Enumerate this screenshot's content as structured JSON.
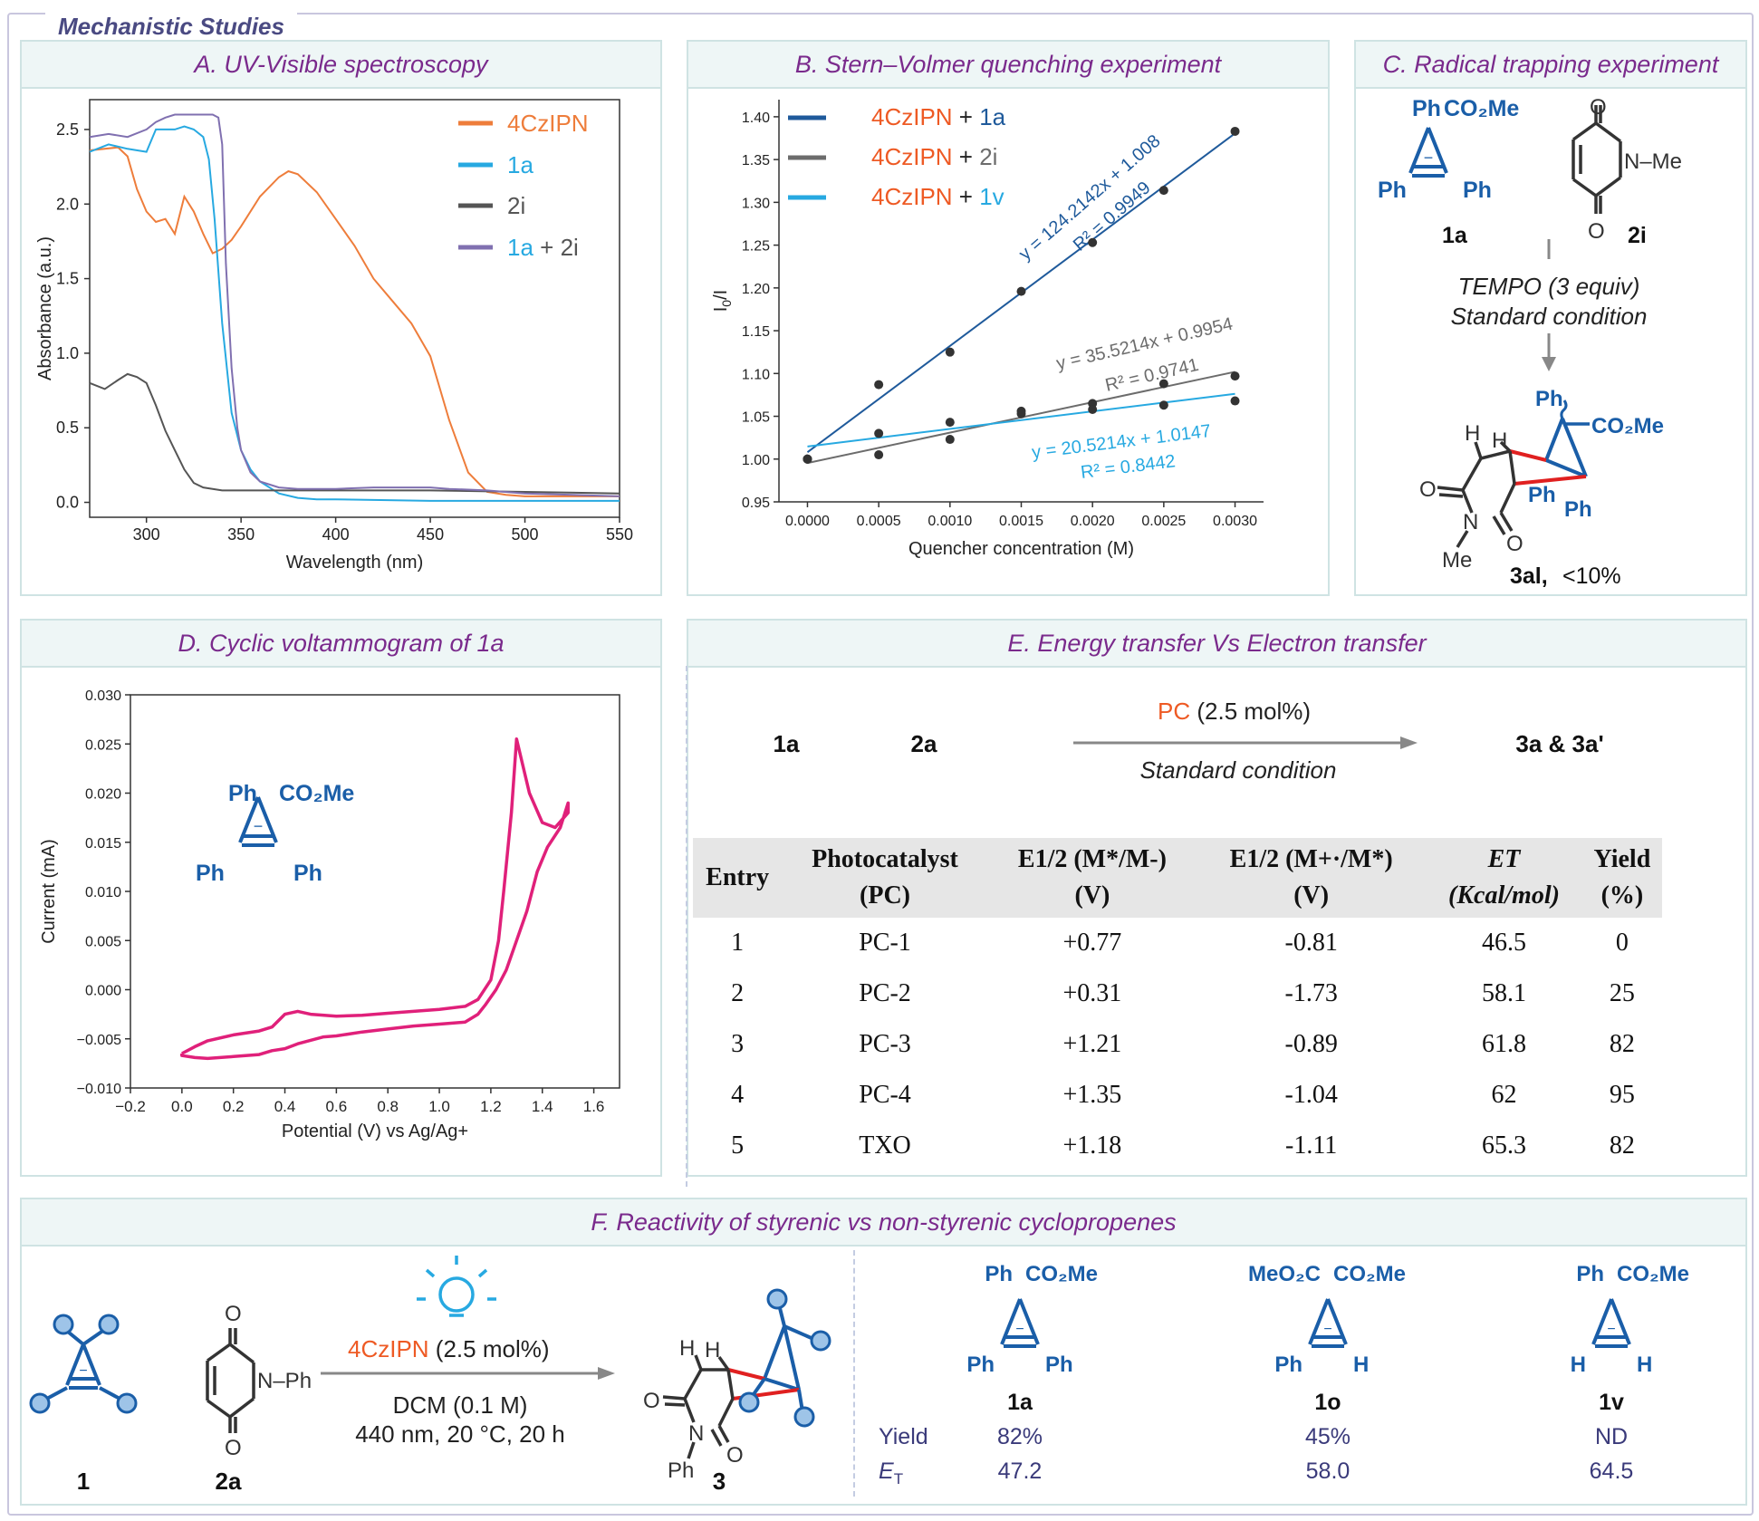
{
  "page_title": "Mechanistic Studies",
  "panels": {
    "a": {
      "title": "A. UV-Visible spectroscopy"
    },
    "b": {
      "title": "B. Stern–Volmer quenching experiment"
    },
    "c": {
      "title": "C. Radical trapping experiment"
    },
    "d": {
      "title": "D. Cyclic voltammogram of 1a"
    },
    "e": {
      "title": "E. Energy transfer Vs Electron transfer"
    },
    "f": {
      "title": "F. Reactivity of styrenic vs non-styrenic cyclopropenes"
    }
  },
  "chart_data": [
    {
      "type": "line",
      "xlabel": "Wavelength (nm)",
      "ylabel": "Absorbance (a.u.)",
      "xlim": [
        270,
        550
      ],
      "ylim": [
        -0.1,
        2.7
      ],
      "xticks": [
        300,
        350,
        400,
        450,
        500,
        550
      ],
      "yticks": [
        0.0,
        0.5,
        1.0,
        1.5,
        2.0,
        2.5
      ],
      "legend": {
        "placement": "top-right",
        "entries": [
          "4CzIPN",
          "1a",
          "2i",
          "1a + 2i"
        ]
      },
      "series": [
        {
          "name": "4CzIPN",
          "color": "#ee7d3b",
          "x": [
            270,
            285,
            290,
            295,
            300,
            305,
            310,
            315,
            320,
            325,
            330,
            335,
            340,
            345,
            350,
            360,
            370,
            375,
            380,
            390,
            400,
            410,
            420,
            430,
            440,
            450,
            460,
            470,
            480,
            490,
            500,
            510,
            530,
            550
          ],
          "y": [
            2.36,
            2.38,
            2.32,
            2.1,
            1.95,
            1.88,
            1.9,
            1.8,
            2.05,
            1.95,
            1.8,
            1.67,
            1.7,
            1.76,
            1.85,
            2.05,
            2.18,
            2.22,
            2.2,
            2.08,
            1.9,
            1.72,
            1.5,
            1.35,
            1.2,
            0.98,
            0.55,
            0.2,
            0.07,
            0.05,
            0.04,
            0.04,
            0.04,
            0.04
          ]
        },
        {
          "name": "1a",
          "color": "#27a9e1",
          "x": [
            270,
            280,
            290,
            300,
            305,
            310,
            315,
            320,
            325,
            330,
            333,
            336,
            340,
            345,
            350,
            355,
            360,
            370,
            380,
            390,
            400,
            450,
            500,
            550
          ],
          "y": [
            2.35,
            2.4,
            2.37,
            2.35,
            2.5,
            2.5,
            2.5,
            2.52,
            2.5,
            2.45,
            2.3,
            1.9,
            1.2,
            0.6,
            0.35,
            0.22,
            0.14,
            0.06,
            0.03,
            0.02,
            0.02,
            0.01,
            0.01,
            0.01
          ]
        },
        {
          "name": "2i",
          "color": "#555555",
          "x": [
            270,
            278,
            285,
            290,
            295,
            300,
            305,
            310,
            315,
            320,
            325,
            330,
            335,
            340,
            345,
            350,
            360,
            380,
            400,
            450,
            500,
            550
          ],
          "y": [
            0.8,
            0.76,
            0.82,
            0.86,
            0.84,
            0.8,
            0.65,
            0.48,
            0.35,
            0.22,
            0.13,
            0.1,
            0.09,
            0.08,
            0.08,
            0.08,
            0.08,
            0.08,
            0.08,
            0.08,
            0.07,
            0.06
          ]
        },
        {
          "name": "1a + 2i",
          "color": "#8070b0",
          "x": [
            270,
            280,
            290,
            300,
            305,
            310,
            315,
            320,
            325,
            330,
            335,
            338,
            340,
            342,
            345,
            348,
            350,
            355,
            360,
            370,
            380,
            400,
            420,
            440,
            450,
            460,
            480,
            500,
            550
          ],
          "y": [
            2.45,
            2.47,
            2.45,
            2.5,
            2.55,
            2.58,
            2.6,
            2.6,
            2.6,
            2.6,
            2.6,
            2.58,
            2.4,
            1.6,
            0.9,
            0.5,
            0.35,
            0.2,
            0.14,
            0.1,
            0.09,
            0.09,
            0.1,
            0.1,
            0.1,
            0.09,
            0.08,
            0.06,
            0.04
          ]
        }
      ]
    },
    {
      "type": "scatter",
      "xlabel": "Quencher concentration (M)",
      "ylabel": "I0/I",
      "xlim": [
        -0.0002,
        0.0032
      ],
      "ylim": [
        0.95,
        1.42
      ],
      "xticks": [
        "0.0000",
        "0.0005",
        "0.0010",
        "0.0015",
        "0.0020",
        "0.0025",
        "0.0030"
      ],
      "yticks": [
        "0.95",
        "1.00",
        "1.05",
        "1.10",
        "1.15",
        "1.20",
        "1.25",
        "1.30",
        "1.35",
        "1.40"
      ],
      "legend": {
        "placement": "top-left",
        "entries": [
          {
            "left": "4CzIPN",
            "right": "1a",
            "color": "#1f5a9b",
            "right_color": "#1f5a9b"
          },
          {
            "left": "4CzIPN",
            "right": "2i",
            "color": "#6c6c6c",
            "right_color": "#6c6c6c"
          },
          {
            "left": "4CzIPN",
            "right": "1v",
            "color": "#27a9e1",
            "right_color": "#27a9e1"
          }
        ]
      },
      "series": [
        {
          "name": "1a",
          "x": [
            0,
            0.0005,
            0.001,
            0.0015,
            0.002,
            0.0025,
            0.003
          ],
          "y": [
            1.0,
            1.087,
            1.125,
            1.196,
            1.253,
            1.314,
            1.383
          ],
          "fit": {
            "slope": 124.2142,
            "intercept": 1.008
          },
          "equation": "y = 124.2142x + 1.008",
          "r2": "R² = 0.9949"
        },
        {
          "name": "2i",
          "x": [
            0,
            0.0005,
            0.001,
            0.0015,
            0.002,
            0.0025,
            0.003
          ],
          "y": [
            1.0,
            1.005,
            1.023,
            1.053,
            1.065,
            1.088,
            1.097
          ],
          "fit": {
            "slope": 35.5214,
            "intercept": 0.9954
          },
          "equation": "y = 35.5214x + 0.9954",
          "r2": "R² = 0.9741"
        },
        {
          "name": "1v",
          "x": [
            0,
            0.0005,
            0.001,
            0.0015,
            0.002,
            0.0025,
            0.003
          ],
          "y": [
            1.0,
            1.03,
            1.043,
            1.056,
            1.058,
            1.063,
            1.068
          ],
          "fit": {
            "slope": 20.5214,
            "intercept": 1.0147
          },
          "equation": "y = 20.5214x + 1.0147",
          "r2": "R² = 0.8442"
        }
      ]
    },
    {
      "type": "line",
      "xlabel": "Potential (V) vs Ag/Ag+",
      "ylabel": "Current (mA)",
      "xlim": [
        -0.2,
        1.7
      ],
      "ylim": [
        -0.01,
        0.03
      ],
      "xticks": [
        "−0.2",
        "0.0",
        "0.2",
        "0.4",
        "0.6",
        "0.8",
        "1.0",
        "1.2",
        "1.4",
        "1.6"
      ],
      "yticks": [
        "−0.010",
        "−0.005",
        "0.000",
        "0.005",
        "0.010",
        "0.015",
        "0.020",
        "0.025",
        "0.030"
      ],
      "series": [
        {
          "name": "",
          "color": "#e0207a",
          "x": [
            0.0,
            0.05,
            0.1,
            0.2,
            0.3,
            0.35,
            0.4,
            0.45,
            0.5,
            0.6,
            0.7,
            0.8,
            0.9,
            1.0,
            1.1,
            1.15,
            1.2,
            1.23,
            1.25,
            1.28,
            1.3,
            1.35,
            1.4,
            1.45,
            1.5,
            1.5,
            1.47,
            1.42,
            1.38,
            1.34,
            1.3,
            1.26,
            1.22,
            1.18,
            1.15,
            1.1,
            1.0,
            0.9,
            0.8,
            0.7,
            0.6,
            0.55,
            0.45,
            0.4,
            0.35,
            0.3,
            0.2,
            0.1,
            0.05,
            0.0,
            0.0
          ],
          "y": [
            -0.0065,
            -0.0058,
            -0.0052,
            -0.0046,
            -0.0042,
            -0.0038,
            -0.0025,
            -0.0022,
            -0.0025,
            -0.0027,
            -0.0026,
            -0.0024,
            -0.0022,
            -0.002,
            -0.0017,
            -0.001,
            0.001,
            0.005,
            0.01,
            0.018,
            0.0255,
            0.02,
            0.017,
            0.0165,
            0.018,
            0.019,
            0.0165,
            0.0145,
            0.012,
            0.008,
            0.005,
            0.002,
            0.0,
            -0.0015,
            -0.0025,
            -0.0033,
            -0.0035,
            -0.0037,
            -0.004,
            -0.0043,
            -0.0047,
            -0.0048,
            -0.0055,
            -0.006,
            -0.0062,
            -0.0066,
            -0.0068,
            -0.007,
            -0.0069,
            -0.0067,
            -0.0065
          ]
        }
      ]
    }
  ],
  "panel_a_legend": {
    "series1": "4CzIPN",
    "series2": "1a",
    "series3": "2i",
    "series4_left": "1a",
    "series4_plus": " + ",
    "series4_right": "2i"
  },
  "panel_b_equations": {
    "eq1": "y = 124.2142x + 1.008",
    "r1": "R² = 0.9949",
    "eq2": "y = 35.5214x + 0.9954",
    "r2": "R² = 0.9741",
    "eq3": "y = 20.5214x + 1.0147",
    "r3": "R² = 0.8442"
  },
  "panel_c": {
    "reactant_1": "1a",
    "reactant_2": "2i",
    "substituents": {
      "ph": "Ph",
      "co2me": "CO₂Me",
      "nme": "N–Me",
      "me": "Me",
      "o": "O",
      "h": "H"
    },
    "condition_1": "TEMPO (3 equiv)",
    "condition_2": "Standard condition",
    "product_label": "3al,",
    "product_yield": "<10%"
  },
  "panel_d": {
    "molecule_ph": "Ph",
    "molecule_co2me": "CO₂Me"
  },
  "panel_e": {
    "reactant_1": "1a",
    "reactant_2": "2a",
    "arrow_top_pc": "PC",
    "arrow_top_rest": " (2.5 mol%)",
    "arrow_bottom": "Standard condition",
    "product": "3a & 3a'",
    "table": {
      "headers": [
        {
          "line1": "Entry",
          "line2": ""
        },
        {
          "line1": "Photocatalyst",
          "line2": "(PC)"
        },
        {
          "line1": "E1/2 (M*/M-)",
          "line2": "(V)"
        },
        {
          "line1": "E1/2 (M+·/M*)",
          "line2": "(V)"
        },
        {
          "line1": "ET",
          "line2": "(Kcal/mol)"
        },
        {
          "line1": "Yield",
          "line2": "(%)"
        }
      ],
      "rows": [
        [
          "1",
          "PC-1",
          "+0.77",
          "-0.81",
          "46.5",
          "0"
        ],
        [
          "2",
          "PC-2",
          "+0.31",
          "-1.73",
          "58.1",
          "25"
        ],
        [
          "3",
          "PC-3",
          "+1.21",
          "-0.89",
          "61.8",
          "82"
        ],
        [
          "4",
          "PC-4",
          "+1.35",
          "-1.04",
          "62",
          "95"
        ],
        [
          "5",
          "TXO",
          "+1.18",
          "-1.11",
          "65.3",
          "82"
        ]
      ]
    }
  },
  "panel_f": {
    "reactant_1": "1",
    "reactant_2": "2a",
    "product": "3",
    "nph": "N–Ph",
    "ph": "Ph",
    "o": "O",
    "h": "H",
    "catalyst": "4CzIPN",
    "catalyst_loading": " (2.5 mol%)",
    "solvent": "DCM (0.1 M)",
    "conditions": "440 nm, 20 °C, 20 h",
    "compounds": [
      {
        "label": "1a",
        "top_left": "Ph",
        "top_right": "CO₂Me",
        "bottom_left": "Ph",
        "bottom_right": "Ph",
        "yield": "82%",
        "et": "47.2"
      },
      {
        "label": "1o",
        "top_left": "MeO₂C",
        "top_right": "CO₂Me",
        "bottom_left": "Ph",
        "bottom_right": "H",
        "yield": "45%",
        "et": "58.0"
      },
      {
        "label": "1v",
        "top_left": "Ph",
        "top_right": "CO₂Me",
        "bottom_left": "H",
        "bottom_right": "H",
        "yield": "ND",
        "et": "64.5"
      }
    ],
    "row_yield_label": "Yield",
    "row_et_label": "ET"
  },
  "colors": {
    "accent_purple": "#7a2a8c",
    "chem_blue": "#1a5ea8",
    "orange": "#ee5a24",
    "magenta": "#e0207a",
    "red_bond": "#e02020",
    "text_navy": "#3a3a7a"
  }
}
